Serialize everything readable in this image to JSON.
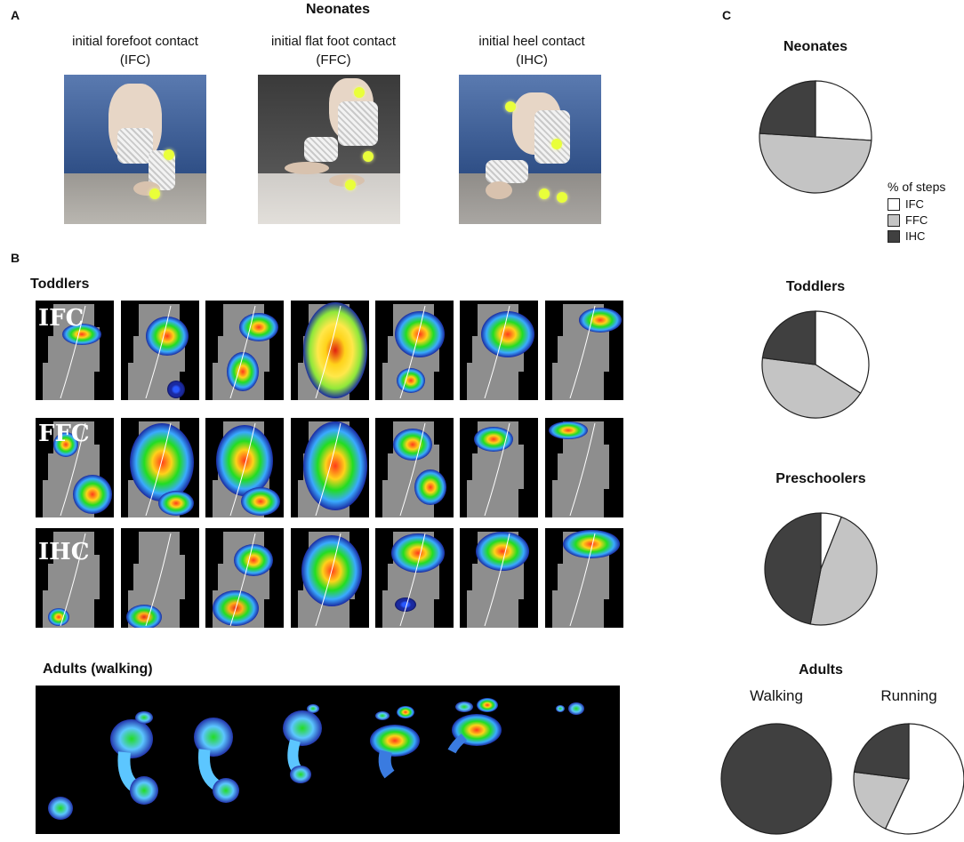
{
  "panels": {
    "a": "A",
    "b": "B",
    "c": "C"
  },
  "neonates_header": "Neonates",
  "contacts": [
    {
      "line1": "initial forefoot contact",
      "line2": "(IFC)"
    },
    {
      "line1": "initial flat foot contact",
      "line2": "(FFC)"
    },
    {
      "line1": "initial heel contact",
      "line2": "(IHC)"
    }
  ],
  "toddlers_header": "Toddlers",
  "row_labels": [
    "IFC",
    "FFC",
    "IHC"
  ],
  "adults_header": "Adults  (walking)",
  "colors": {
    "IFC": "#ffffff",
    "FFC": "#c4c4c4",
    "IHC": "#404040",
    "pie_stroke": "#222222"
  },
  "chart_data": [
    {
      "type": "pie",
      "title": "Neonates",
      "labels": [
        "IFC",
        "FFC",
        "IHC"
      ],
      "values": [
        26,
        50,
        24
      ]
    },
    {
      "type": "pie",
      "title": "Toddlers",
      "labels": [
        "IFC",
        "FFC",
        "IHC"
      ],
      "values": [
        34,
        43,
        23
      ]
    },
    {
      "type": "pie",
      "title": "Preschoolers",
      "labels": [
        "IFC",
        "FFC",
        "IHC"
      ],
      "values": [
        6,
        47,
        47
      ]
    },
    {
      "type": "pie",
      "title": "Adults",
      "subtitle": "Walking",
      "labels": [
        "IFC",
        "FFC",
        "IHC"
      ],
      "values": [
        0,
        0,
        100
      ]
    },
    {
      "type": "pie",
      "subtitle": "Running",
      "labels": [
        "IFC",
        "FFC",
        "IHC"
      ],
      "values": [
        57,
        20,
        23
      ]
    }
  ],
  "legend": {
    "title": "% of steps",
    "items": [
      "IFC",
      "FFC",
      "IHC"
    ],
    "placement": "right of Neonates pie"
  }
}
